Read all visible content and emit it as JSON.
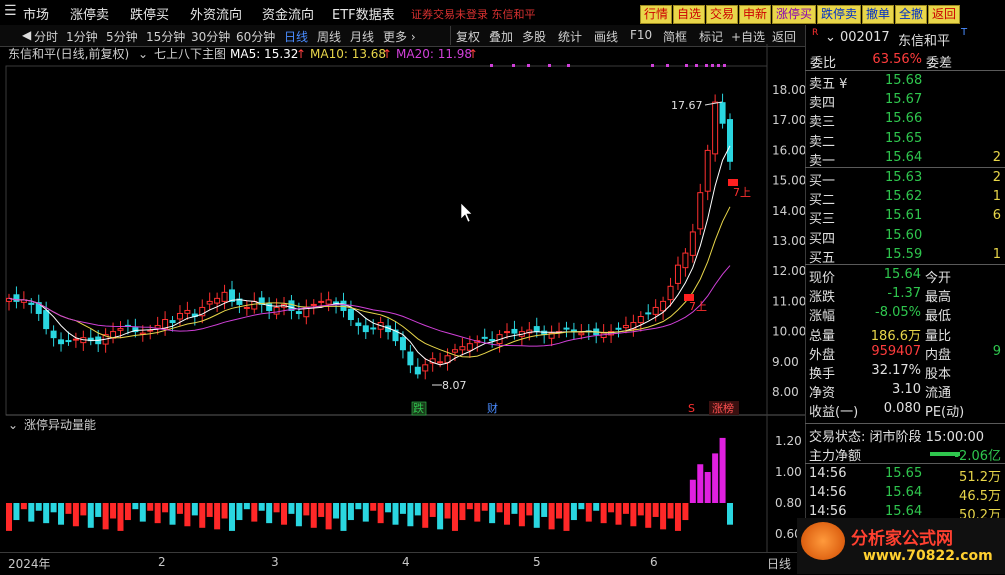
{
  "menu": {
    "items": [
      "市场",
      "涨停卖",
      "跌停买",
      "外资流向",
      "资金流向",
      "ETF数据表"
    ],
    "notice": "证券交易未登录  东信和平"
  },
  "top_buttons": [
    "行情",
    "自选",
    "交易",
    "申新",
    "涨停买",
    "跌停卖",
    "撤单",
    "全撤",
    "返回"
  ],
  "toolbar": {
    "periods": [
      "分时",
      "1分钟",
      "5分钟",
      "15分钟",
      "30分钟",
      "60分钟",
      "日线",
      "周线",
      "月线",
      "更多 ›"
    ],
    "active_period": "日线",
    "actions": [
      "复权",
      "叠加",
      "多股",
      "统计",
      "画线",
      "F10",
      "简框",
      "标记",
      "+自选",
      "返回"
    ]
  },
  "chart_header": {
    "stock": "东信和平(日线,前复权)",
    "indicator": "七上八下主图",
    "ma5": "MA5: 15.32",
    "ma10": "MA10: 13.68",
    "ma20": "MA20: 11.98"
  },
  "sub_header": "涨停异动量能",
  "price_axis": [
    "18.00",
    "17.00",
    "16.00",
    "15.00",
    "14.00",
    "13.00",
    "12.00",
    "11.00",
    "10.00",
    "9.00",
    "8.00"
  ],
  "vol_axis": [
    "1.20",
    "1.00",
    "0.80",
    "0.60"
  ],
  "annotations": {
    "high": "17.67",
    "low": "8.07",
    "up1": "7上",
    "up2": "7上",
    "marker_die": "跌",
    "marker_cai": "财",
    "marker_s": "S",
    "marker_zhangbang": "涨榜"
  },
  "x_axis": [
    "2024年",
    "2",
    "3",
    "4",
    "5",
    "6"
  ],
  "x_axis_right": "日线",
  "panel": {
    "code": "002017",
    "name": "东信和平",
    "weibi_label": "委比",
    "weibi": "63.56%",
    "weicha_label": "委差",
    "asks": [
      {
        "label": "卖五 ¥",
        "price": "15.68",
        "vol": ""
      },
      {
        "label": "卖四",
        "price": "15.67",
        "vol": ""
      },
      {
        "label": "卖三",
        "price": "15.66",
        "vol": ""
      },
      {
        "label": "卖二",
        "price": "15.65",
        "vol": ""
      },
      {
        "label": "卖一",
        "price": "15.64",
        "vol": "2"
      }
    ],
    "bids": [
      {
        "label": "买一",
        "price": "15.63",
        "vol": "2"
      },
      {
        "label": "买二",
        "price": "15.62",
        "vol": "1"
      },
      {
        "label": "买三",
        "price": "15.61",
        "vol": "6"
      },
      {
        "label": "买四",
        "price": "15.60",
        "vol": ""
      },
      {
        "label": "买五",
        "price": "15.59",
        "vol": "1"
      }
    ],
    "stats": [
      {
        "l1": "现价",
        "v1": "15.64",
        "c1": "green",
        "l2": "今开"
      },
      {
        "l1": "涨跌",
        "v1": "-1.37",
        "c1": "green",
        "l2": "最高"
      },
      {
        "l1": "涨幅",
        "v1": "-8.05%",
        "c1": "green",
        "l2": "最低"
      },
      {
        "l1": "总量",
        "v1": "186.6万",
        "c1": "yellow",
        "l2": "量比"
      },
      {
        "l1": "外盘",
        "v1": "959407",
        "c1": "red",
        "l2": "内盘",
        "v2": "9"
      },
      {
        "l1": "换手",
        "v1": "32.17%",
        "c1": "white",
        "l2": "股本"
      },
      {
        "l1": "净资",
        "v1": "3.10",
        "c1": "white",
        "l2": "流通"
      },
      {
        "l1": "收益(一)",
        "v1": "0.080",
        "c1": "white",
        "l2": "PE(动)"
      }
    ],
    "status_label": "交易状态:",
    "status": "闭市阶段 15:00:00",
    "netflow_label": "主力净额",
    "netflow": "-2.06亿",
    "ticks": [
      {
        "t": "14:56",
        "p": "15.65",
        "v": "51.2万"
      },
      {
        "t": "14:56",
        "p": "15.64",
        "v": "46.5万"
      },
      {
        "t": "14:56",
        "p": "15.64",
        "v": "50.2万"
      }
    ]
  },
  "watermark": "分析家公式网",
  "watermark_url": "www.70822.com"
}
